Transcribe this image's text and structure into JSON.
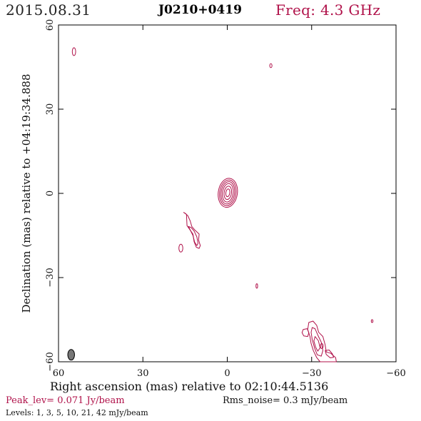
{
  "header": {
    "date": "2015.08.31",
    "source": "J0210+0419",
    "frequency": "Freq: 4.3 GHz"
  },
  "footer": {
    "peak": "Peak_lev=  0.071 Jy/beam",
    "rms": "Rms_noise=   0.3 mJy/beam",
    "levels": "Levels:   1,   3,   5,  10,  21,  42 mJy/beam"
  },
  "chart_data": {
    "type": "contour",
    "xlabel": "Right ascension (mas) relative to 02:10:44.5136",
    "ylabel": "Declination (mas) relative to +04:19:34.888",
    "xlim": [
      60,
      -60
    ],
    "ylim": [
      -60,
      60
    ],
    "xticks": [
      "60",
      "30",
      "0",
      "−30",
      "−60"
    ],
    "yticks": [
      "60",
      "30",
      "0",
      "−30",
      "−60"
    ],
    "contour_levels_mjy": [
      1,
      3,
      5,
      10,
      21,
      42
    ],
    "contour_color": "#b0124a",
    "beam": {
      "ra": 55.5,
      "dec": -57.5,
      "major": 3.8,
      "minor": 2.4
    },
    "components": [
      {
        "name": "core",
        "ra": 0.0,
        "dec": 0.0,
        "levels": 6
      },
      {
        "name": "jet-knot-upper",
        "ra": 13.5,
        "dec": -14.0,
        "levels": 2
      },
      {
        "name": "jet-knot-small",
        "ra": 16.5,
        "dec": -19.5,
        "levels": 1
      },
      {
        "name": "extended-lower-right",
        "ra": -31.5,
        "dec": -53.0,
        "levels": 5
      },
      {
        "name": "noise-top-left",
        "ra": 54.5,
        "dec": 50.5,
        "levels": 1
      },
      {
        "name": "noise-top-right",
        "ra": -15.5,
        "dec": 45.5,
        "levels": 1
      },
      {
        "name": "noise-center-right",
        "ra": -10.5,
        "dec": -33.0,
        "levels": 1
      },
      {
        "name": "noise-far-right",
        "ra": -51.5,
        "dec": -45.5,
        "levels": 1
      }
    ]
  }
}
